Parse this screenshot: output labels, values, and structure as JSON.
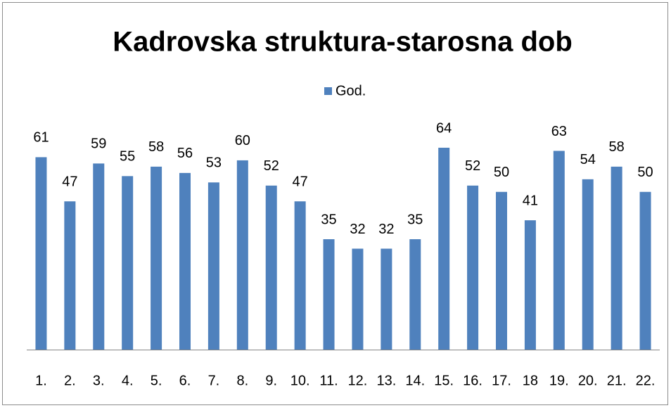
{
  "chart_data": {
    "type": "bar",
    "title": "Kadrovska struktura-starosna dob",
    "categories": [
      "1.",
      "2.",
      "3.",
      "4.",
      "5.",
      "6.",
      "7.",
      "8.",
      "9.",
      "10.",
      "11.",
      "12.",
      "13.",
      "14.",
      "15.",
      "16.",
      "17.",
      "18",
      "19.",
      "20.",
      "21.",
      "22."
    ],
    "series": [
      {
        "name": "God.",
        "color": "#4f81bd",
        "values": [
          61,
          47,
          59,
          55,
          58,
          56,
          53,
          60,
          52,
          47,
          35,
          32,
          32,
          35,
          64,
          52,
          50,
          41,
          63,
          54,
          58,
          50
        ]
      }
    ],
    "legend": "top"
  }
}
